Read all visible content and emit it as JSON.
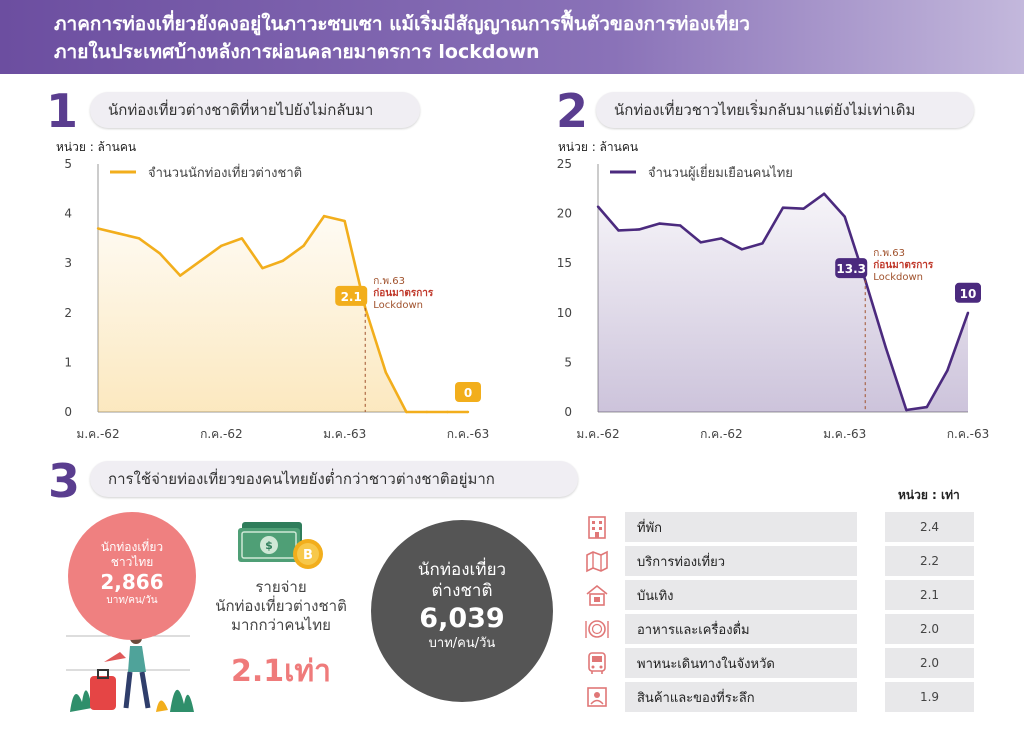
{
  "header": {
    "line1": "ภาคการท่องเที่ยวยังคงอยู่ในภาวะซบเซา แม้เริ่มมีสัญญาณการฟื้นตัวของการท่องเที่ยว",
    "line2": "ภายในประเทศบ้างหลังการผ่อนคลายมาตรการ lockdown"
  },
  "sections": {
    "s1": {
      "num": "1",
      "title": "นักท่องเที่ยวต่างชาติที่หายไปยังไม่กลับมา",
      "unit": "หน่วย : ล้านคน"
    },
    "s2": {
      "num": "2",
      "title": "นักท่องเที่ยวชาวไทยเริ่มกลับมาแต่ยังไม่เท่าเดิม",
      "unit": "หน่วย : ล้านคน"
    },
    "s3": {
      "num": "3",
      "title": "การใช้จ่ายท่องเที่ยวของคนไทยยังต่ำกว่าชาวต่างชาติอยู่มาก"
    }
  },
  "chart_data": [
    {
      "type": "area",
      "legend": "จำนวนนักท่องเที่ยวต่างชาติ",
      "ylim": [
        0,
        5
      ],
      "yticks": [
        "0",
        "1",
        "2",
        "3",
        "4",
        "5"
      ],
      "xticks": [
        "ม.ค.-62",
        "ก.ค.-62",
        "ม.ค.-63",
        "ก.ค.-63"
      ],
      "x": [
        "ม.ค.-62",
        "ก.พ.-62",
        "มี.ค.-62",
        "เม.ย.-62",
        "พ.ค.-62",
        "มิ.ย.-62",
        "ก.ค.-62",
        "ส.ค.-62",
        "ก.ย.-62",
        "ต.ค.-62",
        "พ.ย.-62",
        "ธ.ค.-62",
        "ม.ค.-63",
        "ก.พ.-63",
        "มี.ค.-63",
        "เม.ย.-63",
        "พ.ค.-63",
        "มิ.ย.-63",
        "ก.ค.-63"
      ],
      "values": [
        3.7,
        3.6,
        3.5,
        3.2,
        2.75,
        3.05,
        3.35,
        3.5,
        2.9,
        3.05,
        3.35,
        3.95,
        3.85,
        2.1,
        0.8,
        0,
        0,
        0,
        0
      ],
      "color": "#f2ae1c",
      "callouts": [
        {
          "label": "2.1",
          "index": 13,
          "note1": "ก.พ.63",
          "note2": "ก่อนมาตรการ",
          "note3": "Lockdown"
        },
        {
          "label": "0",
          "index": 18
        }
      ]
    },
    {
      "type": "area",
      "legend": "จำนวนผู้เยี่ยมเยือนคนไทย",
      "ylim": [
        0,
        25
      ],
      "yticks": [
        "0",
        "5",
        "10",
        "15",
        "20",
        "25"
      ],
      "xticks": [
        "ม.ค.-62",
        "ก.ค.-62",
        "ม.ค.-63",
        "ก.ค.-63"
      ],
      "x": [
        "ม.ค.-62",
        "ก.พ.-62",
        "มี.ค.-62",
        "เม.ย.-62",
        "พ.ค.-62",
        "มิ.ย.-62",
        "ก.ค.-62",
        "ส.ค.-62",
        "ก.ย.-62",
        "ต.ค.-62",
        "พ.ย.-62",
        "ธ.ค.-62",
        "ม.ค.-63",
        "ก.พ.-63",
        "มี.ค.-63",
        "เม.ย.-63",
        "พ.ค.-63",
        "มิ.ย.-63",
        "ก.ค.-63"
      ],
      "values": [
        20.7,
        18.3,
        18.4,
        19.0,
        18.8,
        17.1,
        17.5,
        16.4,
        17.0,
        20.6,
        20.5,
        22.0,
        19.7,
        13.3,
        6.5,
        0.2,
        0.5,
        4.2,
        10
      ],
      "color": "#4b2a7e",
      "callouts": [
        {
          "label": "13.3",
          "index": 13,
          "note1": "ก.พ.63",
          "note2": "ก่อนมาตรการ",
          "note3": "Lockdown"
        },
        {
          "label": "10",
          "index": 18
        }
      ]
    }
  ],
  "spending": {
    "thai": {
      "title1": "นักท่องเที่ยว",
      "title2": "ชาวไทย",
      "value": "2,866",
      "unit": "บาท/คน/วัน"
    },
    "foreign": {
      "title1": "นักท่องเที่ยว",
      "title2": "ต่างชาติ",
      "value": "6,039",
      "unit": "บาท/คน/วัน"
    },
    "compare": {
      "line1": "รายจ่าย",
      "line2": "นักท่องเที่ยวต่างชาติ",
      "line3": "มากกว่าคนไทย",
      "value": "2.1เท่า"
    }
  },
  "table": {
    "unit": "หน่วย : เท่า",
    "rows": [
      {
        "label": "ที่พัก",
        "value": "2.4",
        "icon": "hotel-icon"
      },
      {
        "label": "บริการท่องเที่ยว",
        "value": "2.2",
        "icon": "map-icon"
      },
      {
        "label": "บันเทิง",
        "value": "2.1",
        "icon": "entertainment-icon"
      },
      {
        "label": "อาหารและเครื่องดื่ม",
        "value": "2.0",
        "icon": "dining-icon"
      },
      {
        "label": "พาหนะเดินทางในจังหวัด",
        "value": "2.0",
        "icon": "bus-icon"
      },
      {
        "label": "สินค้าและของที่ระลึก",
        "value": "1.9",
        "icon": "souvenir-icon"
      }
    ]
  }
}
